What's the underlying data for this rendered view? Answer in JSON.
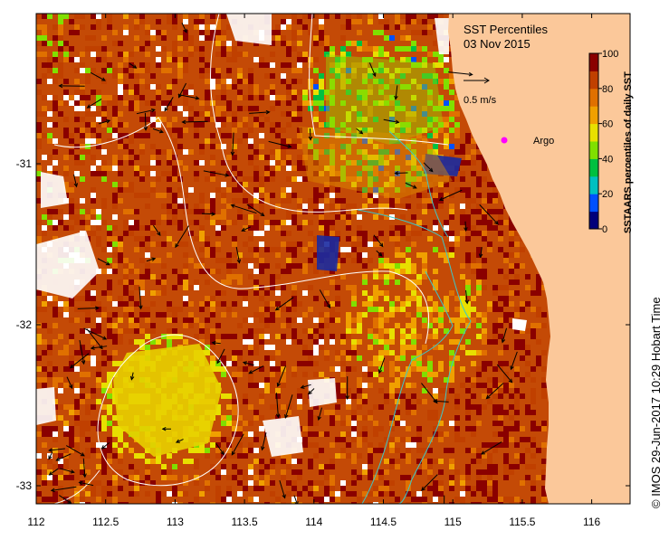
{
  "title": "SST Percentiles",
  "date": "03 Nov 2015",
  "velocity_scale_label": "0.5 m/s",
  "argo_label": "Argo",
  "colorbar": {
    "label": "SSTAARS percentiles of daily SST",
    "ticks": [
      "100",
      "80",
      "60",
      "40",
      "20",
      "0"
    ],
    "colors": [
      "#00007a",
      "#0050ff",
      "#00c0c0",
      "#00c040",
      "#80e000",
      "#e8e000",
      "#f0a000",
      "#e07000",
      "#c04000",
      "#8a0000"
    ]
  },
  "credit": "© IMOS 29-Jun-2017 10:29 Hobart Time",
  "x_axis": {
    "ticks": [
      "112",
      "112.5",
      "113",
      "113.5",
      "114",
      "114.5",
      "115",
      "115.5",
      "116"
    ]
  },
  "y_axis": {
    "ticks": [
      "-31",
      "-32",
      "-33"
    ]
  },
  "colors": {
    "land": "#fbc89a",
    "argo": "#ff00ff",
    "contour": "#ffffff",
    "bathymetry": "#3ec7c7"
  }
}
